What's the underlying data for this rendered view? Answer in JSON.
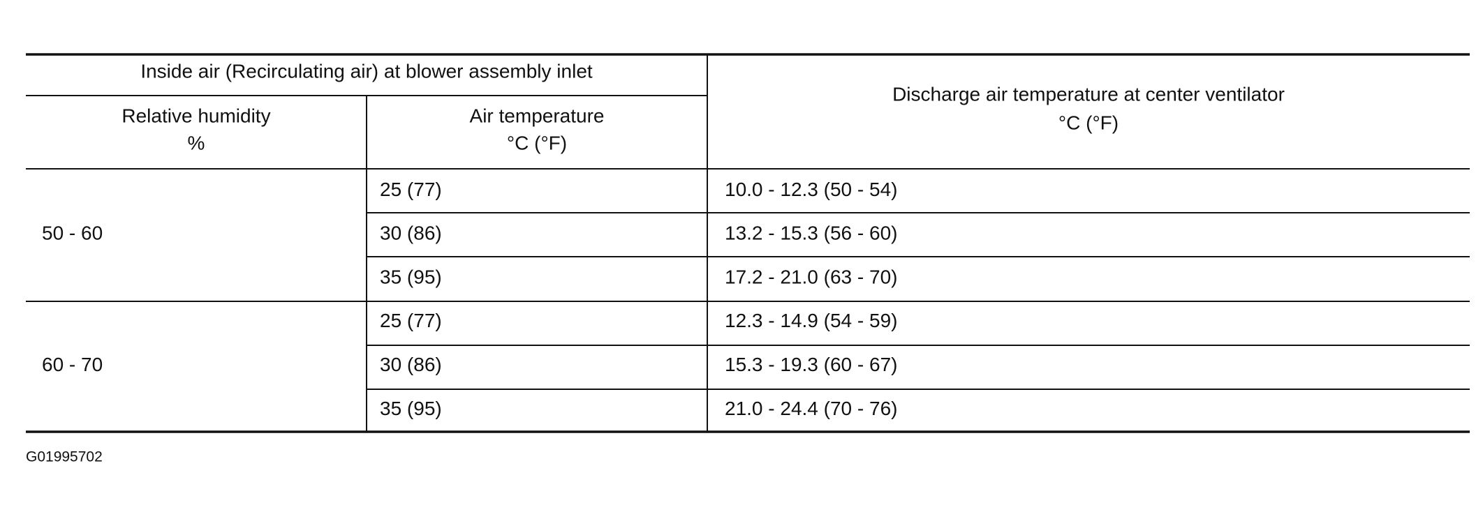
{
  "table": {
    "group_header": "Inside air (Recirculating air) at blower assembly inlet",
    "columns": [
      [
        "Relative humidity",
        "%"
      ],
      [
        "Air temperature",
        "°C (°F)"
      ],
      [
        "Discharge air temperature at center ventilator",
        "°C (°F)"
      ]
    ],
    "rows": [
      {
        "humidity": "50 - 60",
        "entries": [
          {
            "air": "25 (77)",
            "discharge": "10.0 - 12.3 (50 - 54)"
          },
          {
            "air": "30 (86)",
            "discharge": "13.2 - 15.3 (56 - 60)"
          },
          {
            "air": "35 (95)",
            "discharge": "17.2 - 21.0 (63 - 70)"
          }
        ]
      },
      {
        "humidity": "60 - 70",
        "entries": [
          {
            "air": "25 (77)",
            "discharge": "12.3 - 14.9 (54 - 59)"
          },
          {
            "air": "30 (86)",
            "discharge": "15.3 - 19.3 (60 - 67)"
          },
          {
            "air": "35 (95)",
            "discharge": "21.0 - 24.4 (70 - 76)"
          }
        ]
      }
    ]
  },
  "figure_id": "G01995702"
}
